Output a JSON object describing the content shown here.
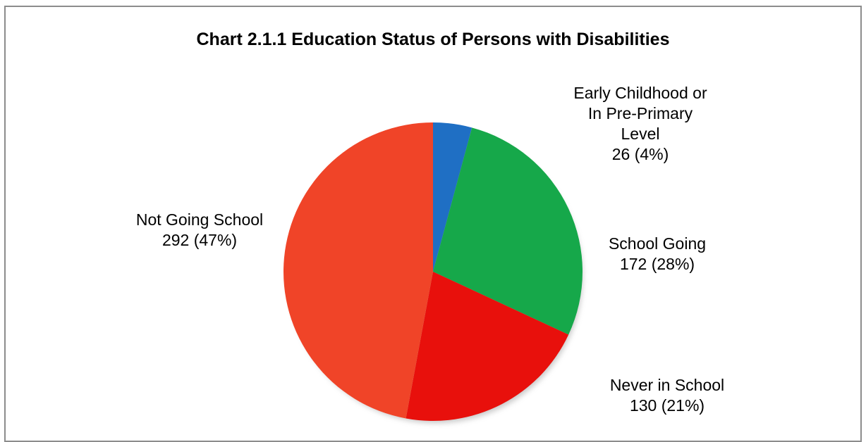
{
  "chart_data": {
    "type": "pie",
    "title": "Chart 2.1.1 Education Status of Persons with Disabilities",
    "slices": [
      {
        "name": "Early Childhood or In Pre-Primary Level",
        "label_lines": [
          "Early Childhood or",
          "In Pre-Primary",
          "Level",
          "26 (4%)"
        ],
        "value": 26,
        "percent": 4,
        "color": "#1f6fc4"
      },
      {
        "name": "School Going",
        "label_lines": [
          "School Going",
          "172 (28%)"
        ],
        "value": 172,
        "percent": 28,
        "color": "#16a84a"
      },
      {
        "name": "Never in School",
        "label_lines": [
          "Never in School",
          "130 (21%)"
        ],
        "value": 130,
        "percent": 21,
        "color": "#e8100c"
      },
      {
        "name": "Not Going School",
        "label_lines": [
          "Not Going School",
          "292 (47%)"
        ],
        "value": 292,
        "percent": 47,
        "color": "#f04428"
      }
    ],
    "legend": "none",
    "start": "top",
    "direction": "clockwise"
  }
}
